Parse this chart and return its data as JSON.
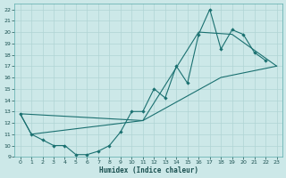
{
  "xlabel": "Humidex (Indice chaleur)",
  "bg_color": "#cce8e8",
  "grid_color": "#b0d4d4",
  "line_color": "#1a7070",
  "xlim": [
    -0.5,
    23.5
  ],
  "ylim": [
    9,
    22.5
  ],
  "xticks": [
    0,
    1,
    2,
    3,
    4,
    5,
    6,
    7,
    8,
    9,
    10,
    11,
    12,
    13,
    14,
    15,
    16,
    17,
    18,
    19,
    20,
    21,
    22,
    23
  ],
  "yticks": [
    9,
    10,
    11,
    12,
    13,
    14,
    15,
    16,
    17,
    18,
    19,
    20,
    21,
    22
  ],
  "curve1_x": [
    0,
    1,
    2,
    3,
    4,
    5,
    6,
    7,
    8,
    9,
    10,
    11,
    12,
    13,
    14,
    15,
    16,
    17,
    18,
    19,
    20,
    21,
    22
  ],
  "curve1_y": [
    12.8,
    11.0,
    10.5,
    10.0,
    10.0,
    9.2,
    9.2,
    9.5,
    10.0,
    11.2,
    13.0,
    13.0,
    15.0,
    14.2,
    17.0,
    15.5,
    19.8,
    22.0,
    18.5,
    20.2,
    19.8,
    18.2,
    17.5
  ],
  "curve2_x": [
    0,
    1,
    11,
    16,
    19,
    23
  ],
  "curve2_y": [
    12.8,
    11.0,
    12.2,
    20.0,
    19.8,
    17.0
  ],
  "curve3_x": [
    0,
    11,
    18,
    23
  ],
  "curve3_y": [
    12.8,
    12.2,
    16.0,
    17.0
  ]
}
